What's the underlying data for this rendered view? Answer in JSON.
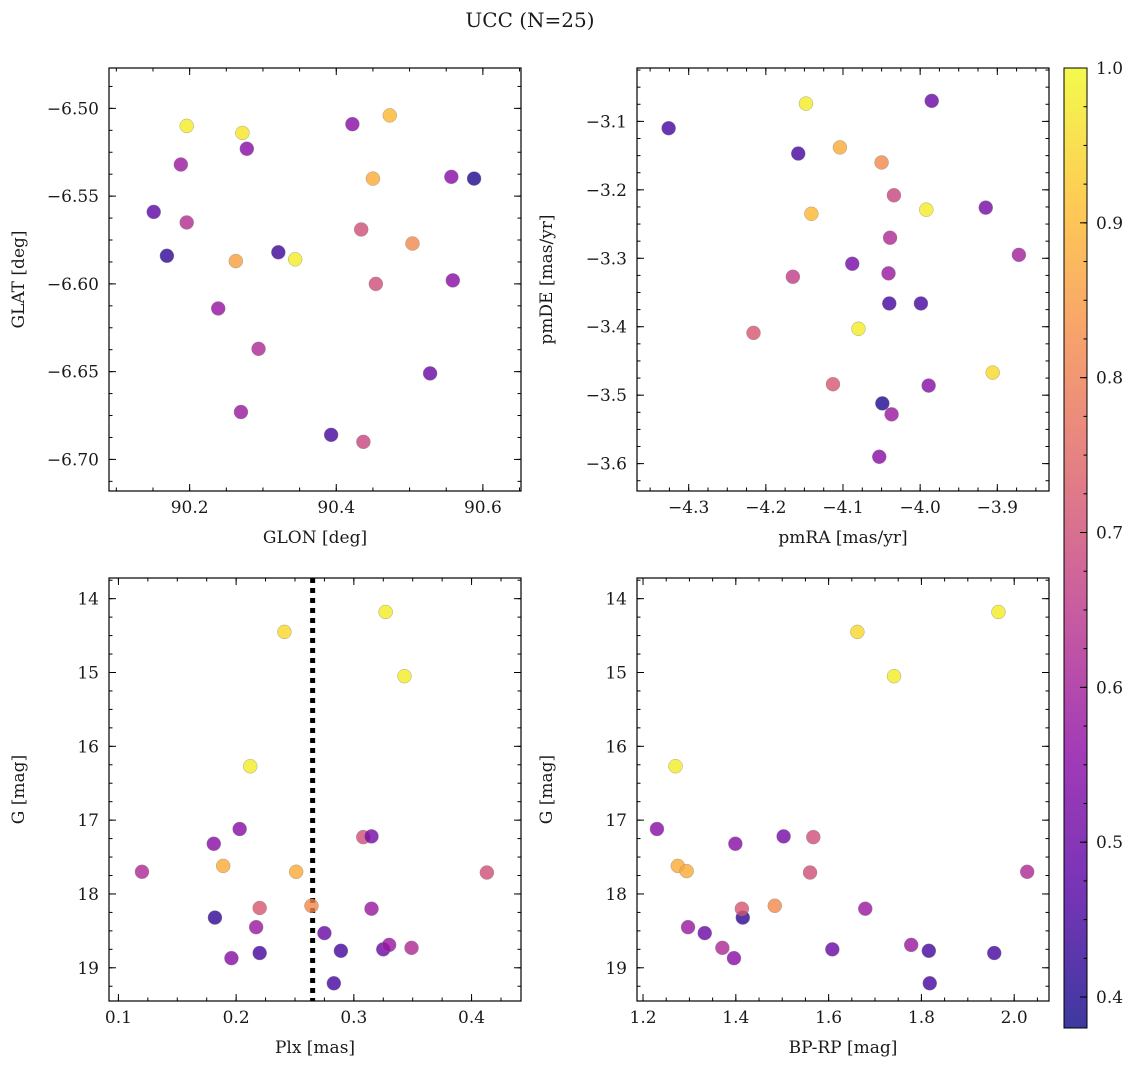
{
  "figure": {
    "title": "UCC (N=25)"
  },
  "colorbar": {
    "min": 0.38,
    "max": 1.0,
    "ticks": [
      "1.0",
      "0.9",
      "0.8",
      "0.7",
      "0.6",
      "0.5",
      "0.4"
    ],
    "tick_values": [
      1.0,
      0.9,
      0.8,
      0.7,
      0.6,
      0.5,
      0.4
    ],
    "colormap": "plasma",
    "colormap_stops": [
      "#0d0887",
      "#5402a3",
      "#8b0aa5",
      "#b93289",
      "#db5c68",
      "#f48849",
      "#febd2a",
      "#f0f921"
    ],
    "marker_alpha": 0.8
  },
  "chart_data": [
    {
      "type": "scatter",
      "id": "glon-glat",
      "xlabel": "GLON [deg]",
      "ylabel": "GLAT [deg]",
      "xlim": [
        90.09,
        90.652
      ],
      "ylim": [
        -6.718,
        -6.477
      ],
      "xticks": [
        90.2,
        90.4,
        90.6
      ],
      "xtick_labels": [
        "90.2",
        "90.4",
        "90.6"
      ],
      "yticks": [
        -6.5,
        -6.55,
        -6.6,
        -6.65,
        -6.7
      ],
      "ytick_labels": [
        "−6.50",
        "−6.55",
        "−6.60",
        "−6.65",
        "−6.70"
      ],
      "points": [
        {
          "x": 90.196,
          "y": -6.51,
          "c": 0.98
        },
        {
          "x": 90.272,
          "y": -6.514,
          "c": 0.97
        },
        {
          "x": 90.473,
          "y": -6.504,
          "c": 0.9
        },
        {
          "x": 90.422,
          "y": -6.509,
          "c": 0.55
        },
        {
          "x": 90.278,
          "y": -6.523,
          "c": 0.55
        },
        {
          "x": 90.188,
          "y": -6.532,
          "c": 0.58
        },
        {
          "x": 90.45,
          "y": -6.54,
          "c": 0.88
        },
        {
          "x": 90.557,
          "y": -6.539,
          "c": 0.55
        },
        {
          "x": 90.588,
          "y": -6.54,
          "c": 0.4
        },
        {
          "x": 90.151,
          "y": -6.559,
          "c": 0.48
        },
        {
          "x": 90.196,
          "y": -6.565,
          "c": 0.63
        },
        {
          "x": 90.434,
          "y": -6.569,
          "c": 0.7
        },
        {
          "x": 90.504,
          "y": -6.577,
          "c": 0.82
        },
        {
          "x": 90.169,
          "y": -6.584,
          "c": 0.42
        },
        {
          "x": 90.321,
          "y": -6.582,
          "c": 0.44
        },
        {
          "x": 90.263,
          "y": -6.587,
          "c": 0.86
        },
        {
          "x": 90.344,
          "y": -6.586,
          "c": 0.98
        },
        {
          "x": 90.454,
          "y": -6.6,
          "c": 0.7
        },
        {
          "x": 90.559,
          "y": -6.598,
          "c": 0.55
        },
        {
          "x": 90.239,
          "y": -6.614,
          "c": 0.57
        },
        {
          "x": 90.294,
          "y": -6.637,
          "c": 0.62
        },
        {
          "x": 90.528,
          "y": -6.651,
          "c": 0.5
        },
        {
          "x": 90.27,
          "y": -6.673,
          "c": 0.58
        },
        {
          "x": 90.393,
          "y": -6.686,
          "c": 0.45
        },
        {
          "x": 90.437,
          "y": -6.69,
          "c": 0.68
        }
      ]
    },
    {
      "type": "scatter",
      "id": "pmra-pmde",
      "xlabel": "pmRA [mas/yr]",
      "ylabel": "pmDE [mas/yr]",
      "xlim": [
        -4.367,
        -3.833
      ],
      "ylim": [
        -3.64,
        -3.022
      ],
      "xticks": [
        -4.3,
        -4.2,
        -4.1,
        -4.0,
        -3.9
      ],
      "xtick_labels": [
        "−4.3",
        "−4.2",
        "−4.1",
        "−4.0",
        "−3.9"
      ],
      "yticks": [
        -3.1,
        -3.2,
        -3.3,
        -3.4,
        -3.5,
        -3.6
      ],
      "ytick_labels": [
        "−3.1",
        "−3.2",
        "−3.3",
        "−3.4",
        "−3.5",
        "−3.6"
      ],
      "points": [
        {
          "x": -4.326,
          "y": -3.11,
          "c": 0.45
        },
        {
          "x": -4.148,
          "y": -3.074,
          "c": 0.98
        },
        {
          "x": -3.985,
          "y": -3.07,
          "c": 0.5
        },
        {
          "x": -4.158,
          "y": -3.147,
          "c": 0.45
        },
        {
          "x": -4.104,
          "y": -3.138,
          "c": 0.88
        },
        {
          "x": -4.05,
          "y": -3.16,
          "c": 0.82
        },
        {
          "x": -4.034,
          "y": -3.208,
          "c": 0.68
        },
        {
          "x": -4.141,
          "y": -3.235,
          "c": 0.9
        },
        {
          "x": -3.992,
          "y": -3.229,
          "c": 0.98
        },
        {
          "x": -3.915,
          "y": -3.226,
          "c": 0.52
        },
        {
          "x": -4.039,
          "y": -3.27,
          "c": 0.62
        },
        {
          "x": -4.088,
          "y": -3.308,
          "c": 0.52
        },
        {
          "x": -4.041,
          "y": -3.322,
          "c": 0.58
        },
        {
          "x": -4.165,
          "y": -3.327,
          "c": 0.66
        },
        {
          "x": -3.872,
          "y": -3.295,
          "c": 0.6
        },
        {
          "x": -4.04,
          "y": -3.366,
          "c": 0.45
        },
        {
          "x": -3.999,
          "y": -3.366,
          "c": 0.45
        },
        {
          "x": -4.216,
          "y": -3.409,
          "c": 0.72
        },
        {
          "x": -4.08,
          "y": -3.403,
          "c": 0.98
        },
        {
          "x": -3.906,
          "y": -3.467,
          "c": 0.95
        },
        {
          "x": -4.113,
          "y": -3.484,
          "c": 0.72
        },
        {
          "x": -3.989,
          "y": -3.486,
          "c": 0.55
        },
        {
          "x": -4.049,
          "y": -3.512,
          "c": 0.4
        },
        {
          "x": -4.037,
          "y": -3.528,
          "c": 0.58
        },
        {
          "x": -4.053,
          "y": -3.59,
          "c": 0.55
        }
      ]
    },
    {
      "type": "scatter",
      "id": "plx-g",
      "xlabel": "Plx [mas]",
      "ylabel": "G [mag]",
      "xlim": [
        0.092,
        0.442
      ],
      "ylim": [
        19.45,
        13.72
      ],
      "y_inverted": true,
      "xticks": [
        0.1,
        0.2,
        0.3,
        0.4
      ],
      "xtick_labels": [
        "0.1",
        "0.2",
        "0.3",
        "0.4"
      ],
      "yticks": [
        14,
        15,
        16,
        17,
        18,
        19
      ],
      "ytick_labels": [
        "14",
        "15",
        "16",
        "17",
        "18",
        "19"
      ],
      "vline": {
        "x": 0.265,
        "style": "dotted"
      },
      "points": [
        {
          "x": 0.327,
          "y": 14.18,
          "c": 0.98
        },
        {
          "x": 0.241,
          "y": 14.45,
          "c": 0.95
        },
        {
          "x": 0.343,
          "y": 15.05,
          "c": 0.98
        },
        {
          "x": 0.212,
          "y": 16.27,
          "c": 0.98
        },
        {
          "x": 0.203,
          "y": 17.12,
          "c": 0.55
        },
        {
          "x": 0.181,
          "y": 17.32,
          "c": 0.55
        },
        {
          "x": 0.308,
          "y": 17.23,
          "c": 0.7
        },
        {
          "x": 0.315,
          "y": 17.22,
          "c": 0.52
        },
        {
          "x": 0.189,
          "y": 17.62,
          "c": 0.88
        },
        {
          "x": 0.12,
          "y": 17.7,
          "c": 0.62
        },
        {
          "x": 0.251,
          "y": 17.7,
          "c": 0.88
        },
        {
          "x": 0.413,
          "y": 17.71,
          "c": 0.7
        },
        {
          "x": 0.182,
          "y": 18.32,
          "c": 0.42
        },
        {
          "x": 0.22,
          "y": 18.19,
          "c": 0.72
        },
        {
          "x": 0.264,
          "y": 18.16,
          "c": 0.82
        },
        {
          "x": 0.315,
          "y": 18.2,
          "c": 0.58
        },
        {
          "x": 0.217,
          "y": 18.45,
          "c": 0.58
        },
        {
          "x": 0.275,
          "y": 18.53,
          "c": 0.5
        },
        {
          "x": 0.196,
          "y": 18.87,
          "c": 0.55
        },
        {
          "x": 0.22,
          "y": 18.8,
          "c": 0.45
        },
        {
          "x": 0.289,
          "y": 18.77,
          "c": 0.45
        },
        {
          "x": 0.325,
          "y": 18.75,
          "c": 0.5
        },
        {
          "x": 0.33,
          "y": 18.69,
          "c": 0.58
        },
        {
          "x": 0.349,
          "y": 18.73,
          "c": 0.62
        },
        {
          "x": 0.283,
          "y": 19.21,
          "c": 0.45
        }
      ]
    },
    {
      "type": "scatter",
      "id": "bprp-g",
      "xlabel": "BP-RP [mag]",
      "ylabel": "G [mag]",
      "xlim": [
        1.187,
        2.075
      ],
      "ylim": [
        19.45,
        13.72
      ],
      "y_inverted": true,
      "xticks": [
        1.2,
        1.4,
        1.6,
        1.8,
        2.0
      ],
      "xtick_labels": [
        "1.2",
        "1.4",
        "1.6",
        "1.8",
        "2.0"
      ],
      "yticks": [
        14,
        15,
        16,
        17,
        18,
        19
      ],
      "ytick_labels": [
        "14",
        "15",
        "16",
        "17",
        "18",
        "19"
      ],
      "points": [
        {
          "x": 1.966,
          "y": 14.18,
          "c": 0.98
        },
        {
          "x": 1.662,
          "y": 14.45,
          "c": 0.95
        },
        {
          "x": 1.741,
          "y": 15.05,
          "c": 0.98
        },
        {
          "x": 1.27,
          "y": 16.27,
          "c": 0.98
        },
        {
          "x": 1.23,
          "y": 17.12,
          "c": 0.55
        },
        {
          "x": 1.399,
          "y": 17.32,
          "c": 0.55
        },
        {
          "x": 1.503,
          "y": 17.22,
          "c": 0.52
        },
        {
          "x": 1.567,
          "y": 17.23,
          "c": 0.7
        },
        {
          "x": 1.275,
          "y": 17.62,
          "c": 0.88
        },
        {
          "x": 1.294,
          "y": 17.69,
          "c": 0.88
        },
        {
          "x": 1.56,
          "y": 17.71,
          "c": 0.7
        },
        {
          "x": 2.028,
          "y": 17.7,
          "c": 0.62
        },
        {
          "x": 1.415,
          "y": 18.32,
          "c": 0.42
        },
        {
          "x": 1.413,
          "y": 18.2,
          "c": 0.72
        },
        {
          "x": 1.484,
          "y": 18.16,
          "c": 0.82
        },
        {
          "x": 1.679,
          "y": 18.2,
          "c": 0.58
        },
        {
          "x": 1.297,
          "y": 18.45,
          "c": 0.58
        },
        {
          "x": 1.333,
          "y": 18.53,
          "c": 0.5
        },
        {
          "x": 1.371,
          "y": 18.73,
          "c": 0.62
        },
        {
          "x": 1.396,
          "y": 18.87,
          "c": 0.55
        },
        {
          "x": 1.608,
          "y": 18.75,
          "c": 0.5
        },
        {
          "x": 1.778,
          "y": 18.69,
          "c": 0.58
        },
        {
          "x": 1.816,
          "y": 18.77,
          "c": 0.45
        },
        {
          "x": 1.957,
          "y": 18.8,
          "c": 0.45
        },
        {
          "x": 1.818,
          "y": 19.21,
          "c": 0.45
        }
      ]
    }
  ]
}
